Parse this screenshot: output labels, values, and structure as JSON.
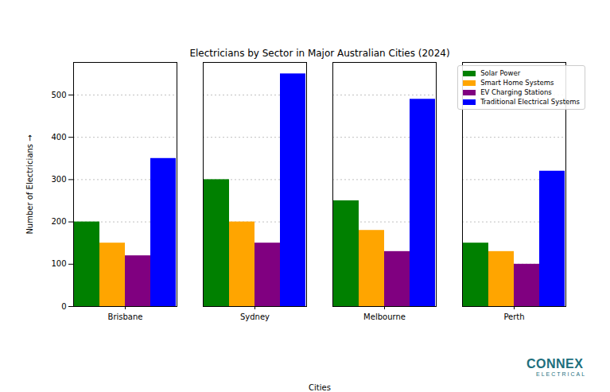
{
  "chart_data": {
    "type": "bar",
    "title": "Electricians by Sector in Major Australian Cities (2024)",
    "x_label": "Cities",
    "y_label": "Number of Electricians",
    "categories": [
      "Brisbane",
      "Sydney",
      "Melbourne",
      "Perth"
    ],
    "series": [
      {
        "name": "Solar Power",
        "color": "#008000",
        "values": [
          200,
          300,
          250,
          150
        ]
      },
      {
        "name": "Smart Home Systems",
        "color": "#ffa500",
        "values": [
          150,
          200,
          180,
          130
        ]
      },
      {
        "name": "EV Charging Stations",
        "color": "#800080",
        "values": [
          120,
          150,
          130,
          100
        ]
      },
      {
        "name": "Traditional Electrical Systems",
        "color": "#0000ff",
        "values": [
          350,
          550,
          490,
          320
        ]
      }
    ],
    "ylim": [
      0,
      577
    ],
    "yticks": [
      0,
      100,
      200,
      300,
      400,
      500
    ],
    "grid": true,
    "legend": "upper right",
    "annotations": [
      "CONNEX",
      "ELECTRICAL"
    ]
  }
}
